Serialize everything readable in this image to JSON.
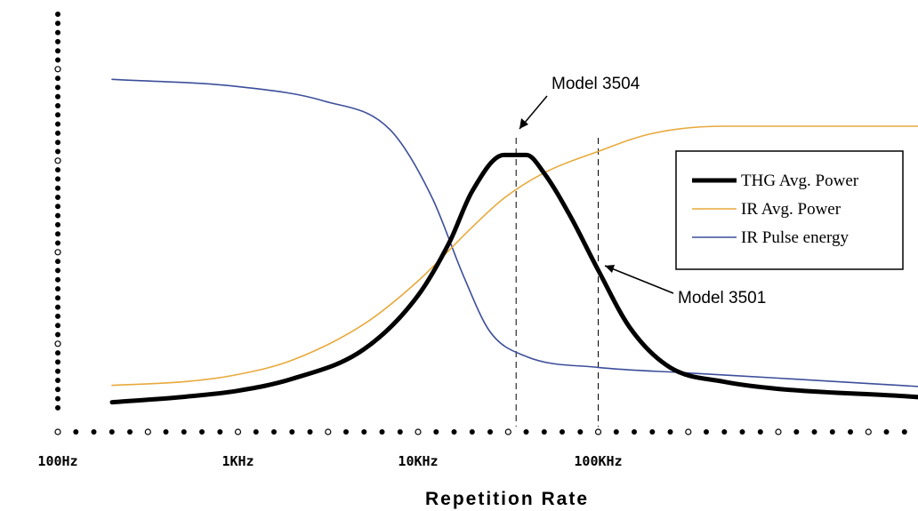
{
  "chart_data": {
    "type": "line",
    "title": "",
    "xlabel": "Repetition Rate",
    "ylabel": "",
    "x_scale": "log",
    "x_range": [
      100,
      30000000
    ],
    "y_range": [
      0,
      1
    ],
    "x_ticks": [
      {
        "value": 100,
        "label": "100Hz"
      },
      {
        "value": 1000,
        "label": "1KHz"
      },
      {
        "value": 10000,
        "label": "10KHz"
      },
      {
        "value": 100000,
        "label": "100KHz"
      }
    ],
    "grid": false,
    "legend_position": "right",
    "series": [
      {
        "name": "THG Avg. Power",
        "color": "#000000",
        "style": "thick",
        "points": [
          [
            200,
            0.033
          ],
          [
            500,
            0.048
          ],
          [
            1000,
            0.065
          ],
          [
            2000,
            0.098
          ],
          [
            5000,
            0.18
          ],
          [
            10000,
            0.33
          ],
          [
            15000,
            0.48
          ],
          [
            20000,
            0.62
          ],
          [
            30000,
            0.72
          ],
          [
            40000,
            0.72
          ],
          [
            50000,
            0.67
          ],
          [
            70000,
            0.55
          ],
          [
            100000,
            0.4
          ],
          [
            150000,
            0.24
          ],
          [
            250000,
            0.13
          ],
          [
            500000,
            0.09
          ],
          [
            1000000,
            0.07
          ],
          [
            5000000,
            0.05
          ],
          [
            10000000,
            0.04
          ]
        ]
      },
      {
        "name": "IR Avg. Power",
        "color": "#E8A93C",
        "style": "thin",
        "points": [
          [
            200,
            0.08
          ],
          [
            500,
            0.09
          ],
          [
            1000,
            0.11
          ],
          [
            2000,
            0.15
          ],
          [
            5000,
            0.25
          ],
          [
            10000,
            0.37
          ],
          [
            20000,
            0.52
          ],
          [
            30000,
            0.6
          ],
          [
            50000,
            0.67
          ],
          [
            100000,
            0.73
          ],
          [
            200000,
            0.78
          ],
          [
            500000,
            0.8
          ],
          [
            1000000,
            0.8
          ],
          [
            10000000,
            0.8
          ]
        ]
      },
      {
        "name": "IR Pulse energy",
        "color": "#3C4E9B",
        "style": "thin",
        "points": [
          [
            200,
            0.93
          ],
          [
            1000,
            0.91
          ],
          [
            3000,
            0.87
          ],
          [
            7000,
            0.79
          ],
          [
            12000,
            0.6
          ],
          [
            18000,
            0.38
          ],
          [
            25000,
            0.23
          ],
          [
            40000,
            0.16
          ],
          [
            100000,
            0.13
          ],
          [
            300000,
            0.115
          ],
          [
            1000000,
            0.1
          ],
          [
            10000000,
            0.07
          ]
        ]
      }
    ],
    "markers": [
      {
        "name": "Model 3504",
        "x": 35000
      },
      {
        "name": "Model 3501",
        "x": 100000
      }
    ]
  }
}
